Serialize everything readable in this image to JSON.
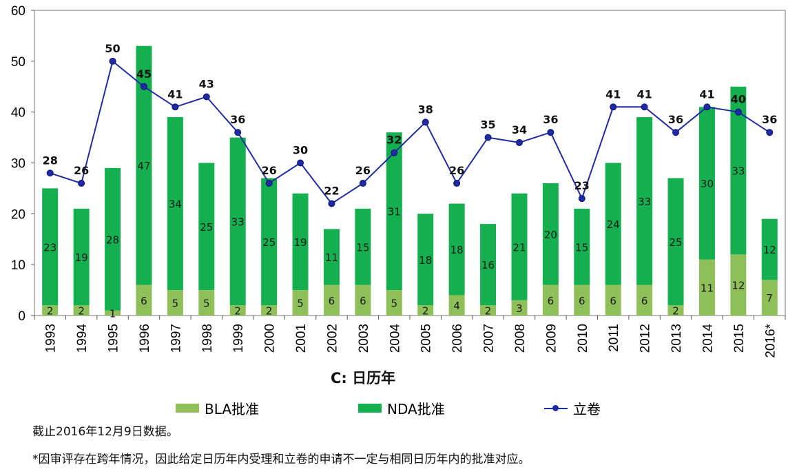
{
  "chart_data": {
    "type": "bar",
    "categories": [
      "1993",
      "1994",
      "1995",
      "1996",
      "1997",
      "1998",
      "1999",
      "2000",
      "2001",
      "2002",
      "2003",
      "2004",
      "2005",
      "2006",
      "2007",
      "2008",
      "2009",
      "2010",
      "2011",
      "2012",
      "2013",
      "2014",
      "2015",
      "2016*"
    ],
    "series": [
      {
        "name": "BLA批准",
        "kind": "stacked-bar",
        "color": "#8ebf58",
        "values": [
          2,
          2,
          1,
          6,
          5,
          5,
          2,
          2,
          5,
          6,
          6,
          5,
          2,
          4,
          2,
          3,
          6,
          6,
          6,
          6,
          2,
          11,
          12,
          7
        ]
      },
      {
        "name": "NDA批准",
        "kind": "stacked-bar",
        "color": "#14b050",
        "values": [
          23,
          19,
          28,
          47,
          34,
          25,
          33,
          25,
          19,
          11,
          15,
          31,
          18,
          18,
          16,
          21,
          20,
          15,
          24,
          33,
          25,
          30,
          33,
          12
        ]
      },
      {
        "name": "立卷",
        "kind": "line",
        "color": "#1f2aa5",
        "values": [
          28,
          26,
          50,
          45,
          41,
          43,
          36,
          26,
          30,
          22,
          26,
          32,
          38,
          26,
          35,
          34,
          36,
          23,
          41,
          41,
          36,
          41,
          40,
          36
        ]
      }
    ],
    "ylim": [
      0,
      60
    ],
    "yticks": [
      0,
      10,
      20,
      30,
      40,
      50,
      60
    ],
    "xlabel": "C: 日历年",
    "grid": false,
    "legend_position": "bottom"
  },
  "legend": {
    "bla_label": "BLA批准",
    "nda_label": "NDA批准",
    "filing_label": "立卷"
  },
  "notes": {
    "data_cutoff": "截止2016年12月9日数据。",
    "footnote": "*因审评存在跨年情况，因此给定日历年内受理和立卷的申请不一定与相同日历年内的批准对应。"
  }
}
